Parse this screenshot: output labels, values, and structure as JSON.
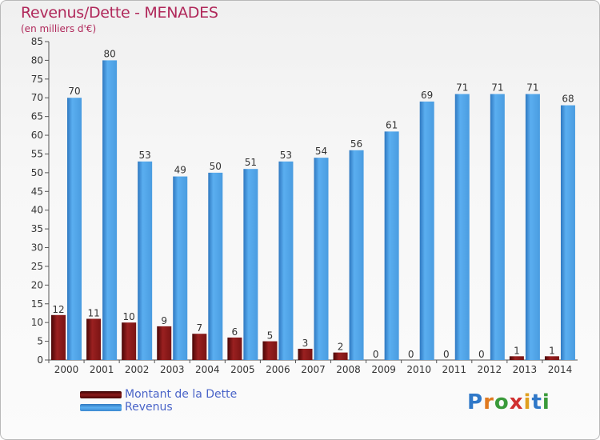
{
  "header": {
    "title": "Revenus/Dette - MENADES",
    "subtitle": "(en milliers d'€)"
  },
  "colors": {
    "dette": "#8b1a1a",
    "revenus": "#4a9fe0",
    "title": "#b0285a"
  },
  "logo": {
    "text": "Proxiti",
    "letter_colors": [
      "#2f78c8",
      "#e07a20",
      "#3a9a3a",
      "#d03030",
      "#e0a020",
      "#2f78c8",
      "#3a9a3a"
    ]
  },
  "chart_data": {
    "type": "bar",
    "categories": [
      "2000",
      "2001",
      "2002",
      "2003",
      "2004",
      "2005",
      "2006",
      "2007",
      "2008",
      "2009",
      "2010",
      "2011",
      "2012",
      "2013",
      "2014"
    ],
    "series": [
      {
        "name": "Montant de la Dette",
        "values": [
          12,
          11,
          10,
          9,
          7,
          6,
          5,
          3,
          2,
          0,
          0,
          0,
          0,
          1,
          1
        ]
      },
      {
        "name": "Revenus",
        "values": [
          70,
          80,
          53,
          49,
          50,
          51,
          53,
          54,
          56,
          61,
          69,
          71,
          71,
          71,
          68
        ]
      }
    ],
    "yticks": [
      0,
      5,
      10,
      15,
      20,
      25,
      30,
      35,
      40,
      45,
      50,
      55,
      60,
      65,
      70,
      75,
      80,
      85
    ],
    "ylim": [
      0,
      85
    ],
    "grid": false,
    "legend_position": "bottom-left"
  }
}
